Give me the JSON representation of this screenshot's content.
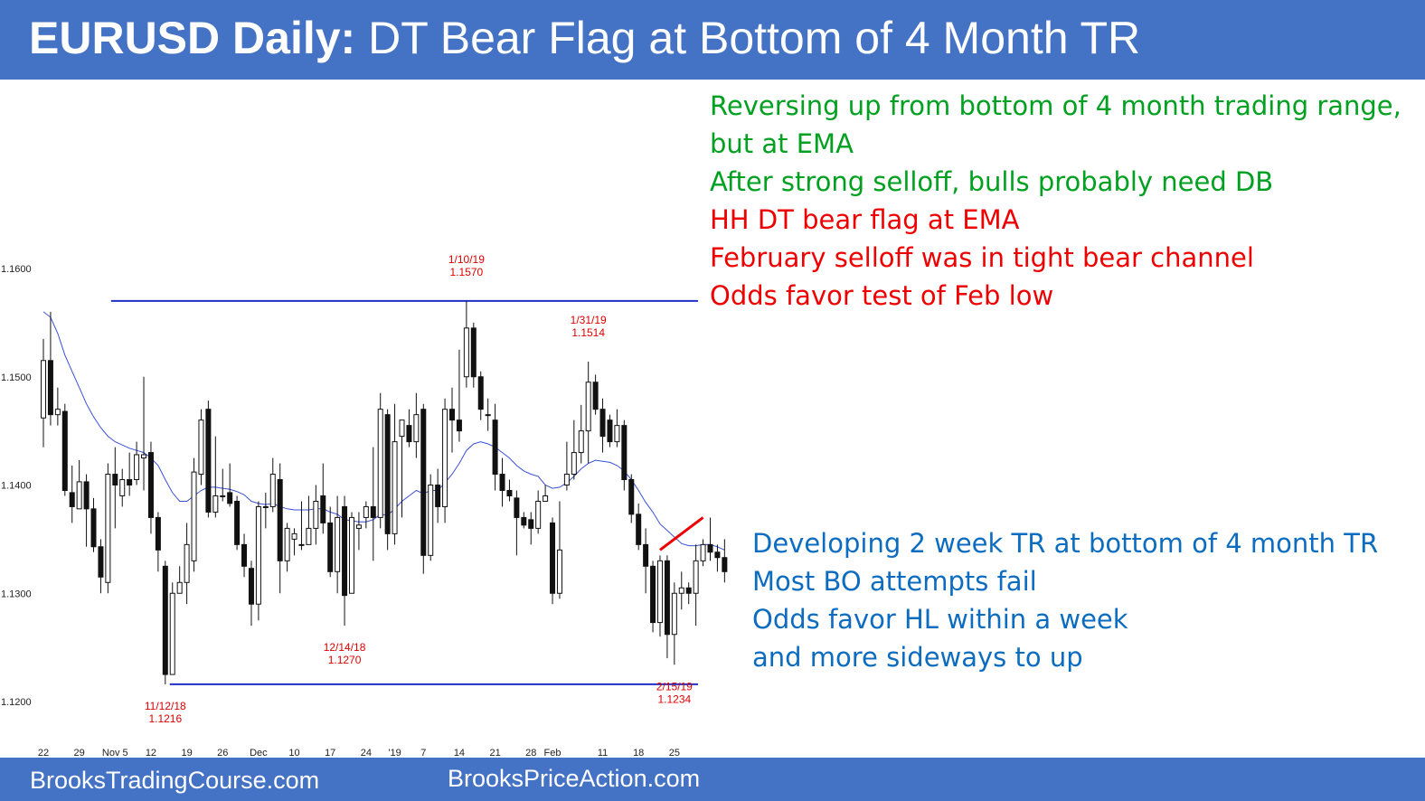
{
  "header": {
    "title_bold": "EURUSD Daily:",
    "title_rest": " DT Bear Flag at Bottom of 4 Month TR"
  },
  "footer": {
    "left": "BrooksTradingCourse.com",
    "mid": "BrooksPriceAction.com"
  },
  "notes_top": [
    {
      "text": "Reversing up from bottom of 4 month trading range,",
      "color": "green"
    },
    {
      "text": "but at EMA",
      "color": "green"
    },
    {
      "text": "After strong selloff, bulls probably need DB",
      "color": "green"
    },
    {
      "text": "HH DT bear flag at EMA",
      "color": "red"
    },
    {
      "text": "February selloff was in tight bear channel",
      "color": "red"
    },
    {
      "text": "Odds favor test of Feb low",
      "color": "red"
    }
  ],
  "notes_bottom": [
    {
      "text": "Developing 2 week TR at bottom of 4 month TR",
      "color": "blue"
    },
    {
      "text": "Most BO attempts fail",
      "color": "blue"
    },
    {
      "text": "Odds favor HL within a week",
      "color": "blue"
    },
    {
      "text": "and more sideways to up",
      "color": "blue"
    }
  ],
  "chart_data": {
    "type": "candlestick",
    "title": "EURUSD Daily",
    "ylim": [
      1.1185,
      1.1625
    ],
    "y_ticks": [
      "1.1200",
      "1.1300",
      "1.1400",
      "1.1500",
      "1.1600"
    ],
    "y_tick_values": [
      1.12,
      1.13,
      1.14,
      1.15,
      1.16
    ],
    "x_ticks": [
      {
        "label": "22",
        "bar": 0
      },
      {
        "label": "29",
        "bar": 5
      },
      {
        "label": "Nov 5",
        "bar": 10
      },
      {
        "label": "12",
        "bar": 15
      },
      {
        "label": "19",
        "bar": 20
      },
      {
        "label": "26",
        "bar": 25
      },
      {
        "label": "Dec",
        "bar": 30
      },
      {
        "label": "10",
        "bar": 35
      },
      {
        "label": "17",
        "bar": 40
      },
      {
        "label": "24",
        "bar": 45
      },
      {
        "label": "'19",
        "bar": 49
      },
      {
        "label": "7",
        "bar": 53
      },
      {
        "label": "14",
        "bar": 58
      },
      {
        "label": "21",
        "bar": 63
      },
      {
        "label": "28",
        "bar": 68
      },
      {
        "label": "Feb",
        "bar": 71
      },
      {
        "label": "11",
        "bar": 78
      },
      {
        "label": "18",
        "bar": 83
      },
      {
        "label": "25",
        "bar": 88
      }
    ],
    "candles": [
      [
        1.1462,
        1.1515,
        1.1535,
        1.1435
      ],
      [
        1.1515,
        1.1465,
        1.156,
        1.1455
      ],
      [
        1.1465,
        1.147,
        1.149,
        1.1455
      ],
      [
        1.1468,
        1.1395,
        1.1475,
        1.139
      ],
      [
        1.1393,
        1.138,
        1.1418,
        1.1365
      ],
      [
        1.1378,
        1.1403,
        1.1423,
        1.1378
      ],
      [
        1.1403,
        1.1378,
        1.141,
        1.1343
      ],
      [
        1.1378,
        1.1343,
        1.1388,
        1.1338
      ],
      [
        1.1343,
        1.1315,
        1.135,
        1.13
      ],
      [
        1.131,
        1.141,
        1.142,
        1.13
      ],
      [
        1.141,
        1.14,
        1.1435,
        1.136
      ],
      [
        1.139,
        1.1405,
        1.1415,
        1.138
      ],
      [
        1.1405,
        1.14,
        1.143,
        1.139
      ],
      [
        1.1405,
        1.1428,
        1.144,
        1.14
      ],
      [
        1.1425,
        1.1428,
        1.15,
        1.1395
      ],
      [
        1.143,
        1.137,
        1.144,
        1.1355
      ],
      [
        1.137,
        1.134,
        1.1375,
        1.132
      ],
      [
        1.1325,
        1.1225,
        1.133,
        1.1216
      ],
      [
        1.1225,
        1.13,
        1.131,
        1.1225
      ],
      [
        1.13,
        1.131,
        1.1325,
        1.13
      ],
      [
        1.131,
        1.1345,
        1.1365,
        1.129
      ],
      [
        1.133,
        1.1412,
        1.1425,
        1.132
      ],
      [
        1.141,
        1.146,
        1.147,
        1.14
      ],
      [
        1.147,
        1.1375,
        1.1478,
        1.137
      ],
      [
        1.1375,
        1.139,
        1.1445,
        1.137
      ],
      [
        1.139,
        1.139,
        1.1415,
        1.1385
      ],
      [
        1.1393,
        1.1383,
        1.142,
        1.138
      ],
      [
        1.1385,
        1.1345,
        1.139,
        1.134
      ],
      [
        1.1345,
        1.1325,
        1.1355,
        1.1315
      ],
      [
        1.1323,
        1.129,
        1.133,
        1.127
      ],
      [
        1.129,
        1.138,
        1.1385,
        1.1275
      ],
      [
        1.138,
        1.138,
        1.1393,
        1.136
      ],
      [
        1.138,
        1.141,
        1.1425,
        1.1375
      ],
      [
        1.1405,
        1.133,
        1.142,
        1.13
      ],
      [
        1.133,
        1.136,
        1.1365,
        1.132
      ],
      [
        1.135,
        1.1355,
        1.136,
        1.1335
      ],
      [
        1.1345,
        1.1345,
        1.1385,
        1.134
      ],
      [
        1.1345,
        1.136,
        1.139,
        1.1345
      ],
      [
        1.136,
        1.1385,
        1.14,
        1.1345
      ],
      [
        1.139,
        1.1365,
        1.142,
        1.1355
      ],
      [
        1.1365,
        1.132,
        1.138,
        1.1315
      ],
      [
        1.132,
        1.137,
        1.139,
        1.13
      ],
      [
        1.138,
        1.1298,
        1.139,
        1.127
      ],
      [
        1.13,
        1.137,
        1.1375,
        1.13
      ],
      [
        1.136,
        1.1363,
        1.1375,
        1.134
      ],
      [
        1.137,
        1.138,
        1.1385,
        1.136
      ],
      [
        1.138,
        1.137,
        1.1435,
        1.133
      ],
      [
        1.137,
        1.147,
        1.1485,
        1.136
      ],
      [
        1.1465,
        1.1355,
        1.147,
        1.134
      ],
      [
        1.1355,
        1.144,
        1.1475,
        1.1345
      ],
      [
        1.1445,
        1.146,
        1.146,
        1.137
      ],
      [
        1.1455,
        1.144,
        1.147,
        1.1435
      ],
      [
        1.144,
        1.1465,
        1.1485,
        1.1425
      ],
      [
        1.147,
        1.1335,
        1.1475,
        1.1318
      ],
      [
        1.1335,
        1.14,
        1.141,
        1.133
      ],
      [
        1.14,
        1.138,
        1.1415,
        1.1365
      ],
      [
        1.138,
        1.147,
        1.148,
        1.1365
      ],
      [
        1.147,
        1.146,
        1.149,
        1.143
      ],
      [
        1.146,
        1.145,
        1.1525,
        1.144
      ],
      [
        1.15,
        1.1545,
        1.157,
        1.149
      ],
      [
        1.1545,
        1.15,
        1.155,
        1.149
      ],
      [
        1.15,
        1.147,
        1.1505,
        1.146
      ],
      [
        1.1465,
        1.1465,
        1.148,
        1.145
      ],
      [
        1.146,
        1.141,
        1.1475,
        1.1395
      ],
      [
        1.141,
        1.1395,
        1.1425,
        1.138
      ],
      [
        1.1395,
        1.139,
        1.1405,
        1.1385
      ],
      [
        1.1388,
        1.137,
        1.1395,
        1.1335
      ],
      [
        1.137,
        1.1363,
        1.1375,
        1.136
      ],
      [
        1.1368,
        1.136,
        1.1375,
        1.1345
      ],
      [
        1.136,
        1.1385,
        1.1395,
        1.1355
      ],
      [
        1.1385,
        1.139,
        1.14,
        1.1385
      ],
      [
        1.1365,
        1.13,
        1.137,
        1.129
      ],
      [
        1.13,
        1.134,
        1.1385,
        1.1295
      ],
      [
        1.14,
        1.141,
        1.144,
        1.1395
      ],
      [
        1.141,
        1.143,
        1.146,
        1.1405
      ],
      [
        1.143,
        1.145,
        1.1474,
        1.142
      ],
      [
        1.145,
        1.1495,
        1.1514,
        1.142
      ],
      [
        1.1495,
        1.147,
        1.1502,
        1.1465
      ],
      [
        1.147,
        1.1445,
        1.148,
        1.143
      ],
      [
        1.146,
        1.144,
        1.1465,
        1.1435
      ],
      [
        1.144,
        1.1455,
        1.147,
        1.1435
      ],
      [
        1.1455,
        1.1405,
        1.146,
        1.1395
      ],
      [
        1.1405,
        1.1373,
        1.141,
        1.1365
      ],
      [
        1.1373,
        1.1345,
        1.1383,
        1.134
      ],
      [
        1.1345,
        1.1325,
        1.136,
        1.13
      ],
      [
        1.1325,
        1.1273,
        1.133,
        1.1264
      ],
      [
        1.1273,
        1.133,
        1.1335,
        1.126
      ],
      [
        1.133,
        1.1262,
        1.1335,
        1.124
      ],
      [
        1.1262,
        1.13,
        1.131,
        1.1234
      ],
      [
        1.13,
        1.1305,
        1.132,
        1.1285
      ],
      [
        1.1305,
        1.13,
        1.131,
        1.129
      ],
      [
        1.13,
        1.133,
        1.1345,
        1.127
      ],
      [
        1.133,
        1.1345,
        1.135,
        1.1325
      ],
      [
        1.1345,
        1.1338,
        1.137,
        1.133
      ],
      [
        1.1338,
        1.1333,
        1.1345,
        1.132
      ],
      [
        1.1333,
        1.132,
        1.135,
        1.131
      ]
    ],
    "ema": [
      1.156,
      1.1555,
      1.154,
      1.152,
      1.1505,
      1.149,
      1.1475,
      1.1463,
      1.1453,
      1.1445,
      1.144,
      1.1437,
      1.1434,
      1.1432,
      1.143,
      1.1425,
      1.1418,
      1.1405,
      1.1393,
      1.1385,
      1.1385,
      1.139,
      1.1395,
      1.1398,
      1.1398,
      1.1397,
      1.1396,
      1.1394,
      1.1391,
      1.1385,
      1.1383,
      1.1382,
      1.1383,
      1.138,
      1.1378,
      1.1377,
      1.1377,
      1.1377,
      1.1378,
      1.1378,
      1.1375,
      1.1373,
      1.1368,
      1.1367,
      1.1366,
      1.1366,
      1.1368,
      1.1373,
      1.1372,
      1.1378,
      1.1385,
      1.139,
      1.1395,
      1.1392,
      1.1395,
      1.1395,
      1.1402,
      1.141,
      1.142,
      1.1432,
      1.1438,
      1.144,
      1.1438,
      1.1435,
      1.143,
      1.1425,
      1.1418,
      1.1413,
      1.141,
      1.1408,
      1.14,
      1.1397,
      1.1398,
      1.1402,
      1.1408,
      1.1415,
      1.142,
      1.1423,
      1.1422,
      1.1421,
      1.1418,
      1.1413,
      1.1405,
      1.1395,
      1.1384,
      1.1375,
      1.1364,
      1.1358,
      1.1352,
      1.1346,
      1.1344,
      1.1344,
      1.1345,
      1.1345,
      1.1343,
      1.134
    ],
    "levels": [
      {
        "name": "range-top",
        "value": 1.157,
        "from_bar": 17
      },
      {
        "name": "range-bottom",
        "value": 1.1216,
        "from_bar": 18
      }
    ],
    "annotations": [
      {
        "date": "1/10/19",
        "price": "1.1570",
        "bar": 59,
        "placement": "above"
      },
      {
        "date": "1/31/19",
        "price": "1.1514",
        "bar": 76,
        "placement": "above"
      },
      {
        "date": "12/14/18",
        "price": "1.1270",
        "bar": 42,
        "placement": "below"
      },
      {
        "date": "11/12/18",
        "price": "1.1216",
        "bar": 17,
        "placement": "below"
      },
      {
        "date": "2/15/19",
        "price": "1.1234",
        "bar": 88,
        "placement": "below"
      }
    ],
    "trendline": {
      "from_bar": 86,
      "from_value": 1.134,
      "to_bar": 92,
      "to_value": 1.137
    }
  }
}
